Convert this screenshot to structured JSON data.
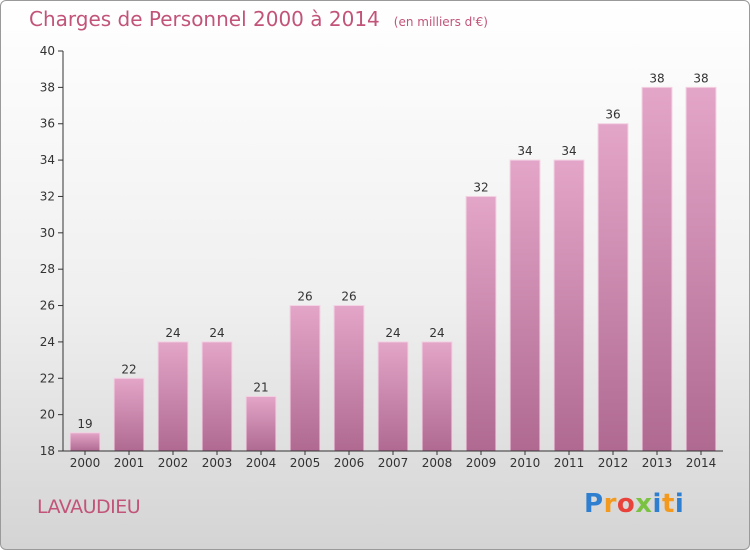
{
  "header": {
    "title": "Charges de Personnel 2000 à 2014",
    "subtitle": "(en milliers d'€)"
  },
  "footer": {
    "commune": "LAVAUDIEU",
    "logo_letters": [
      "P",
      "r",
      "o",
      "x",
      "i",
      "t",
      "i"
    ]
  },
  "colors": {
    "bar": "#d88db5",
    "accent": "#c2547a",
    "axis": "#333333"
  },
  "chart_data": {
    "type": "bar",
    "categories": [
      "2000",
      "2001",
      "2002",
      "2003",
      "2004",
      "2005",
      "2006",
      "2007",
      "2008",
      "2009",
      "2010",
      "2011",
      "2012",
      "2013",
      "2014"
    ],
    "values": [
      19,
      22,
      24,
      24,
      21,
      26,
      26,
      24,
      24,
      32,
      34,
      34,
      36,
      38,
      38
    ],
    "ylim": [
      18,
      40
    ],
    "yticks": [
      18,
      20,
      22,
      24,
      26,
      28,
      30,
      32,
      34,
      36,
      38,
      40
    ],
    "data_labels": true,
    "grid": false,
    "legend": "none"
  }
}
